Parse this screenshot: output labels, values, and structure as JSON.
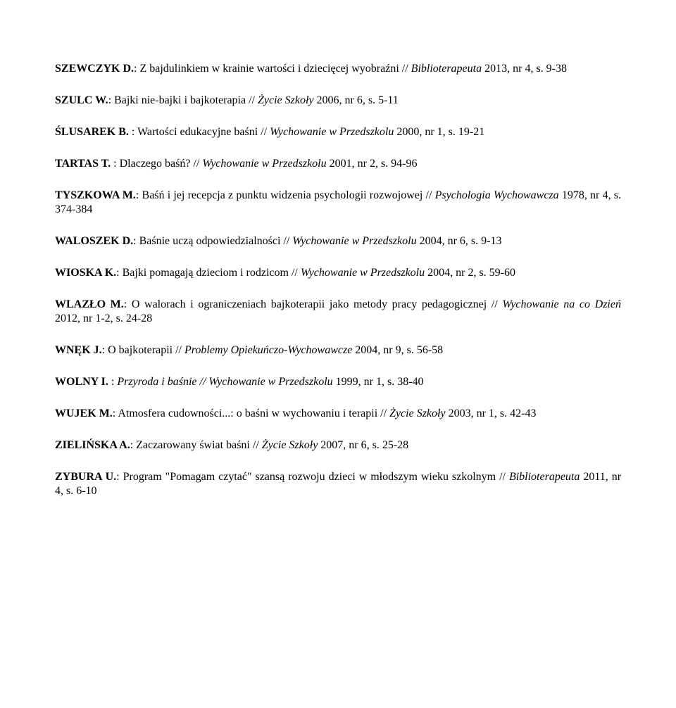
{
  "entries": [
    {
      "author": "SZEWCZYK D.",
      "text1": ": Z bajdulinkiem w krainie wartości i dziecięcej wyobraźni // ",
      "italic": "Biblioterapeuta",
      "text2": " 2013, nr 4, s. 9-38",
      "justified": true
    },
    {
      "author": "SZULC W.",
      "text1": ": Bajki nie-bajki i bajkoterapia // ",
      "italic": "Życie Szkoły",
      "text2": " 2006, nr 6, s. 5-11"
    },
    {
      "author": "ŚLUSAREK B.",
      "text1": " : Wartości edukacyjne baśni // ",
      "italic": "Wychowanie w Przedszkolu",
      "text2": " 2000, nr 1, s. 19-21"
    },
    {
      "author": "TARTAS T.",
      "text1": " : Dlaczego baśń? // ",
      "italic": "Wychowanie w Przedszkolu",
      "text2": " 2001, nr 2, s. 94-96"
    },
    {
      "author": "TYSZKOWA M.",
      "text1": ": Baśń i jej recepcja z punktu widzenia psychologii rozwojowej // ",
      "italic": "Psychologia Wychowawcza",
      "text2": " 1978, nr 4, s. 374-384"
    },
    {
      "author": "WALOSZEK D.",
      "text1": ": Baśnie uczą odpowiedzialności // ",
      "italic": "Wychowanie w Przedszkolu",
      "text2": " 2004, nr 6, s. 9-13"
    },
    {
      "author": "WIOSKA K.",
      "text1": ": Bajki pomagają dzieciom i rodzicom // ",
      "italic": "Wychowanie w Przedszkolu",
      "text2": " 2004, nr 2, s. 59-60"
    },
    {
      "author": "WLAZŁO M.",
      "text1": ": O walorach i ograniczeniach bajkoterapii jako metody pracy pedagogicznej // ",
      "italic": "Wychowanie na co Dzień",
      "text2": " 2012, nr 1-2, s. 24-28"
    },
    {
      "author": "WNĘK J.",
      "text1": ": O bajkoterapii  // ",
      "italic": "Problemy Opiekuńczo-Wychowawcze",
      "text2": " 2004, nr 9, s. 56-58"
    },
    {
      "author": "WOLNY I.",
      "text1": " : ",
      "italic": "Przyroda i baśnie // Wychowanie w Przedszkolu",
      "text2": " 1999, nr 1, s. 38-40"
    },
    {
      "author": "WUJEK M.",
      "text1": ": Atmosfera cudowności...: o baśni w wychowaniu i terapii // ",
      "italic": "Życie Szkoły",
      "text2": " 2003, nr 1, s. 42-43"
    },
    {
      "author": "ZIELIŃSKA A.",
      "text1": ": Zaczarowany świat baśni // ",
      "italic": "Życie Szkoły",
      "text2": " 2007, nr 6, s. 25-28"
    },
    {
      "author": "ZYBURA U.",
      "text1": ": Program \"Pomagam czytać\" szansą rozwoju dzieci w młodszym wieku szkolnym // ",
      "italic": "Biblioterapeuta",
      "text2": " 2011, nr 4, s. 6-10"
    }
  ]
}
